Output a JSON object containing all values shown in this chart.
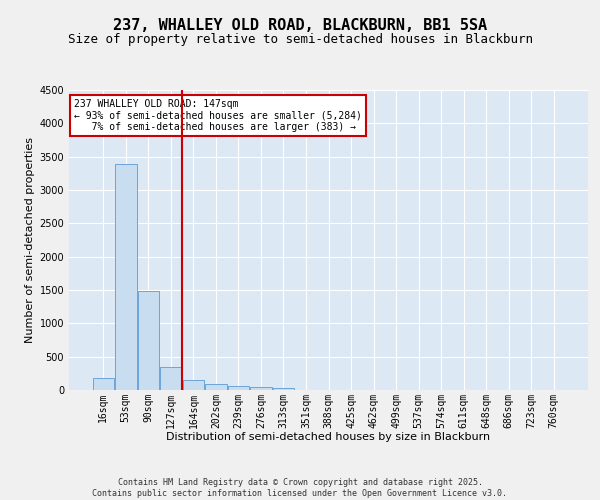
{
  "title_line1": "237, WHALLEY OLD ROAD, BLACKBURN, BB1 5SA",
  "title_line2": "Size of property relative to semi-detached houses in Blackburn",
  "xlabel": "Distribution of semi-detached houses by size in Blackburn",
  "ylabel": "Number of semi-detached properties",
  "footer": "Contains HM Land Registry data © Crown copyright and database right 2025.\nContains public sector information licensed under the Open Government Licence v3.0.",
  "bin_labels": [
    "16sqm",
    "53sqm",
    "90sqm",
    "127sqm",
    "164sqm",
    "202sqm",
    "239sqm",
    "276sqm",
    "313sqm",
    "351sqm",
    "388sqm",
    "425sqm",
    "462sqm",
    "499sqm",
    "537sqm",
    "574sqm",
    "611sqm",
    "648sqm",
    "686sqm",
    "723sqm",
    "760sqm"
  ],
  "bar_values": [
    175,
    3390,
    1480,
    345,
    155,
    90,
    65,
    45,
    30,
    5,
    0,
    0,
    0,
    0,
    0,
    0,
    0,
    0,
    0,
    0,
    0
  ],
  "bar_color": "#c9ddf0",
  "bar_edge_color": "#5b9bd5",
  "vline_color": "#cc0000",
  "vline_pos": 3.5,
  "annotation_text": "237 WHALLEY OLD ROAD: 147sqm\n← 93% of semi-detached houses are smaller (5,284)\n   7% of semi-detached houses are larger (383) →",
  "annotation_box_edgecolor": "#cc0000",
  "ylim": [
    0,
    4500
  ],
  "yticks": [
    0,
    500,
    1000,
    1500,
    2000,
    2500,
    3000,
    3500,
    4000,
    4500
  ],
  "fig_background": "#f0f0f0",
  "plot_background": "#dce9f5",
  "grid_color": "#ffffff",
  "title_fontsize": 11,
  "subtitle_fontsize": 9,
  "axis_label_fontsize": 8,
  "tick_fontsize": 7,
  "footer_fontsize": 6,
  "annotation_fontsize": 7
}
